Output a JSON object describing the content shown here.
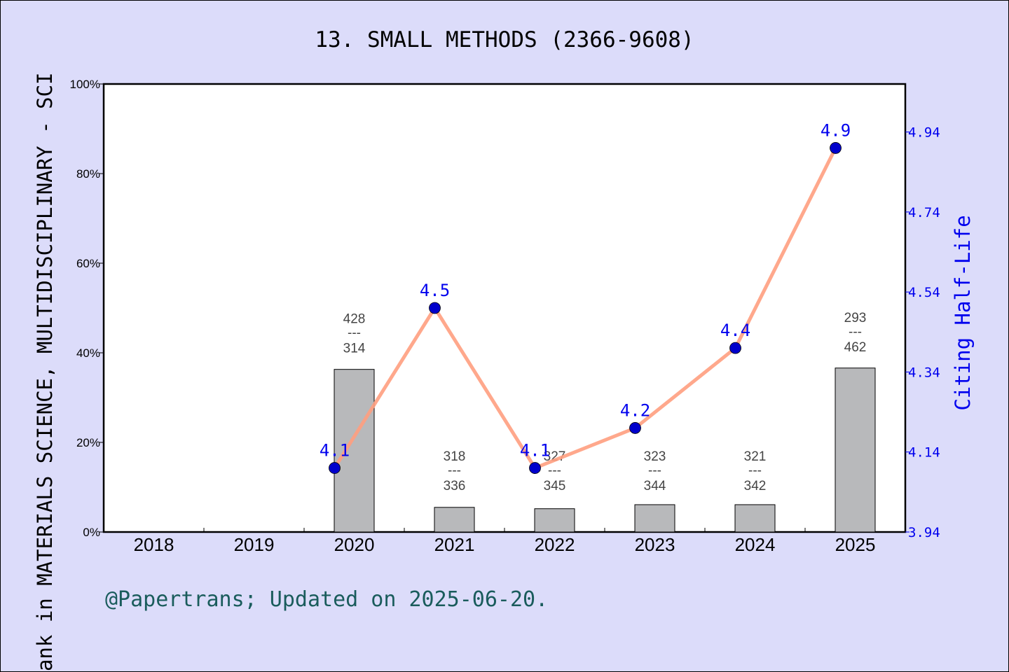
{
  "chart_data": {
    "type": "bar+line",
    "title": "13. SMALL METHODS (2366-9608)",
    "ylabel": "Rank in MATERIALS SCIENCE, MULTIDISCIPLINARY - SCI",
    "y2label": "Citing Half-Life",
    "footer": "@Papertrans; Updated on 2025-06-20.",
    "categories": [
      "2018",
      "2019",
      "2020",
      "2021",
      "2022",
      "2023",
      "2024",
      "2025"
    ],
    "ylim": [
      0,
      100
    ],
    "yticks": [
      "0%",
      "20%",
      "40%",
      "60%",
      "80%",
      "100%"
    ],
    "y2lim": [
      3.94,
      5.06
    ],
    "y2ticks": [
      "3.94",
      "4.14",
      "4.34",
      "4.54",
      "4.74",
      "4.94"
    ],
    "bars": {
      "values": [
        null,
        null,
        36.3,
        5.5,
        5.2,
        6.1,
        6.1,
        36.6
      ],
      "labels_top": [
        null,
        null,
        "428",
        "318",
        "327",
        "323",
        "321",
        "293"
      ],
      "labels_sep": "---",
      "labels_bottom": [
        null,
        null,
        "314",
        "336",
        "345",
        "344",
        "342",
        "462"
      ],
      "color": "#b8b9bb"
    },
    "line": {
      "values": [
        null,
        null,
        4.1,
        4.5,
        4.1,
        4.2,
        4.4,
        4.9
      ],
      "labels": [
        null,
        null,
        "4.1",
        "4.5",
        "4.1",
        "4.2",
        "4.4",
        "4.9"
      ],
      "line_color": "#ff9f7f",
      "marker_color": "#0000cc"
    },
    "colors": {
      "background": "#dcdcfa",
      "plot": "#ffffff",
      "footer": "#1a5c5c",
      "y2": "#0000ee"
    }
  }
}
